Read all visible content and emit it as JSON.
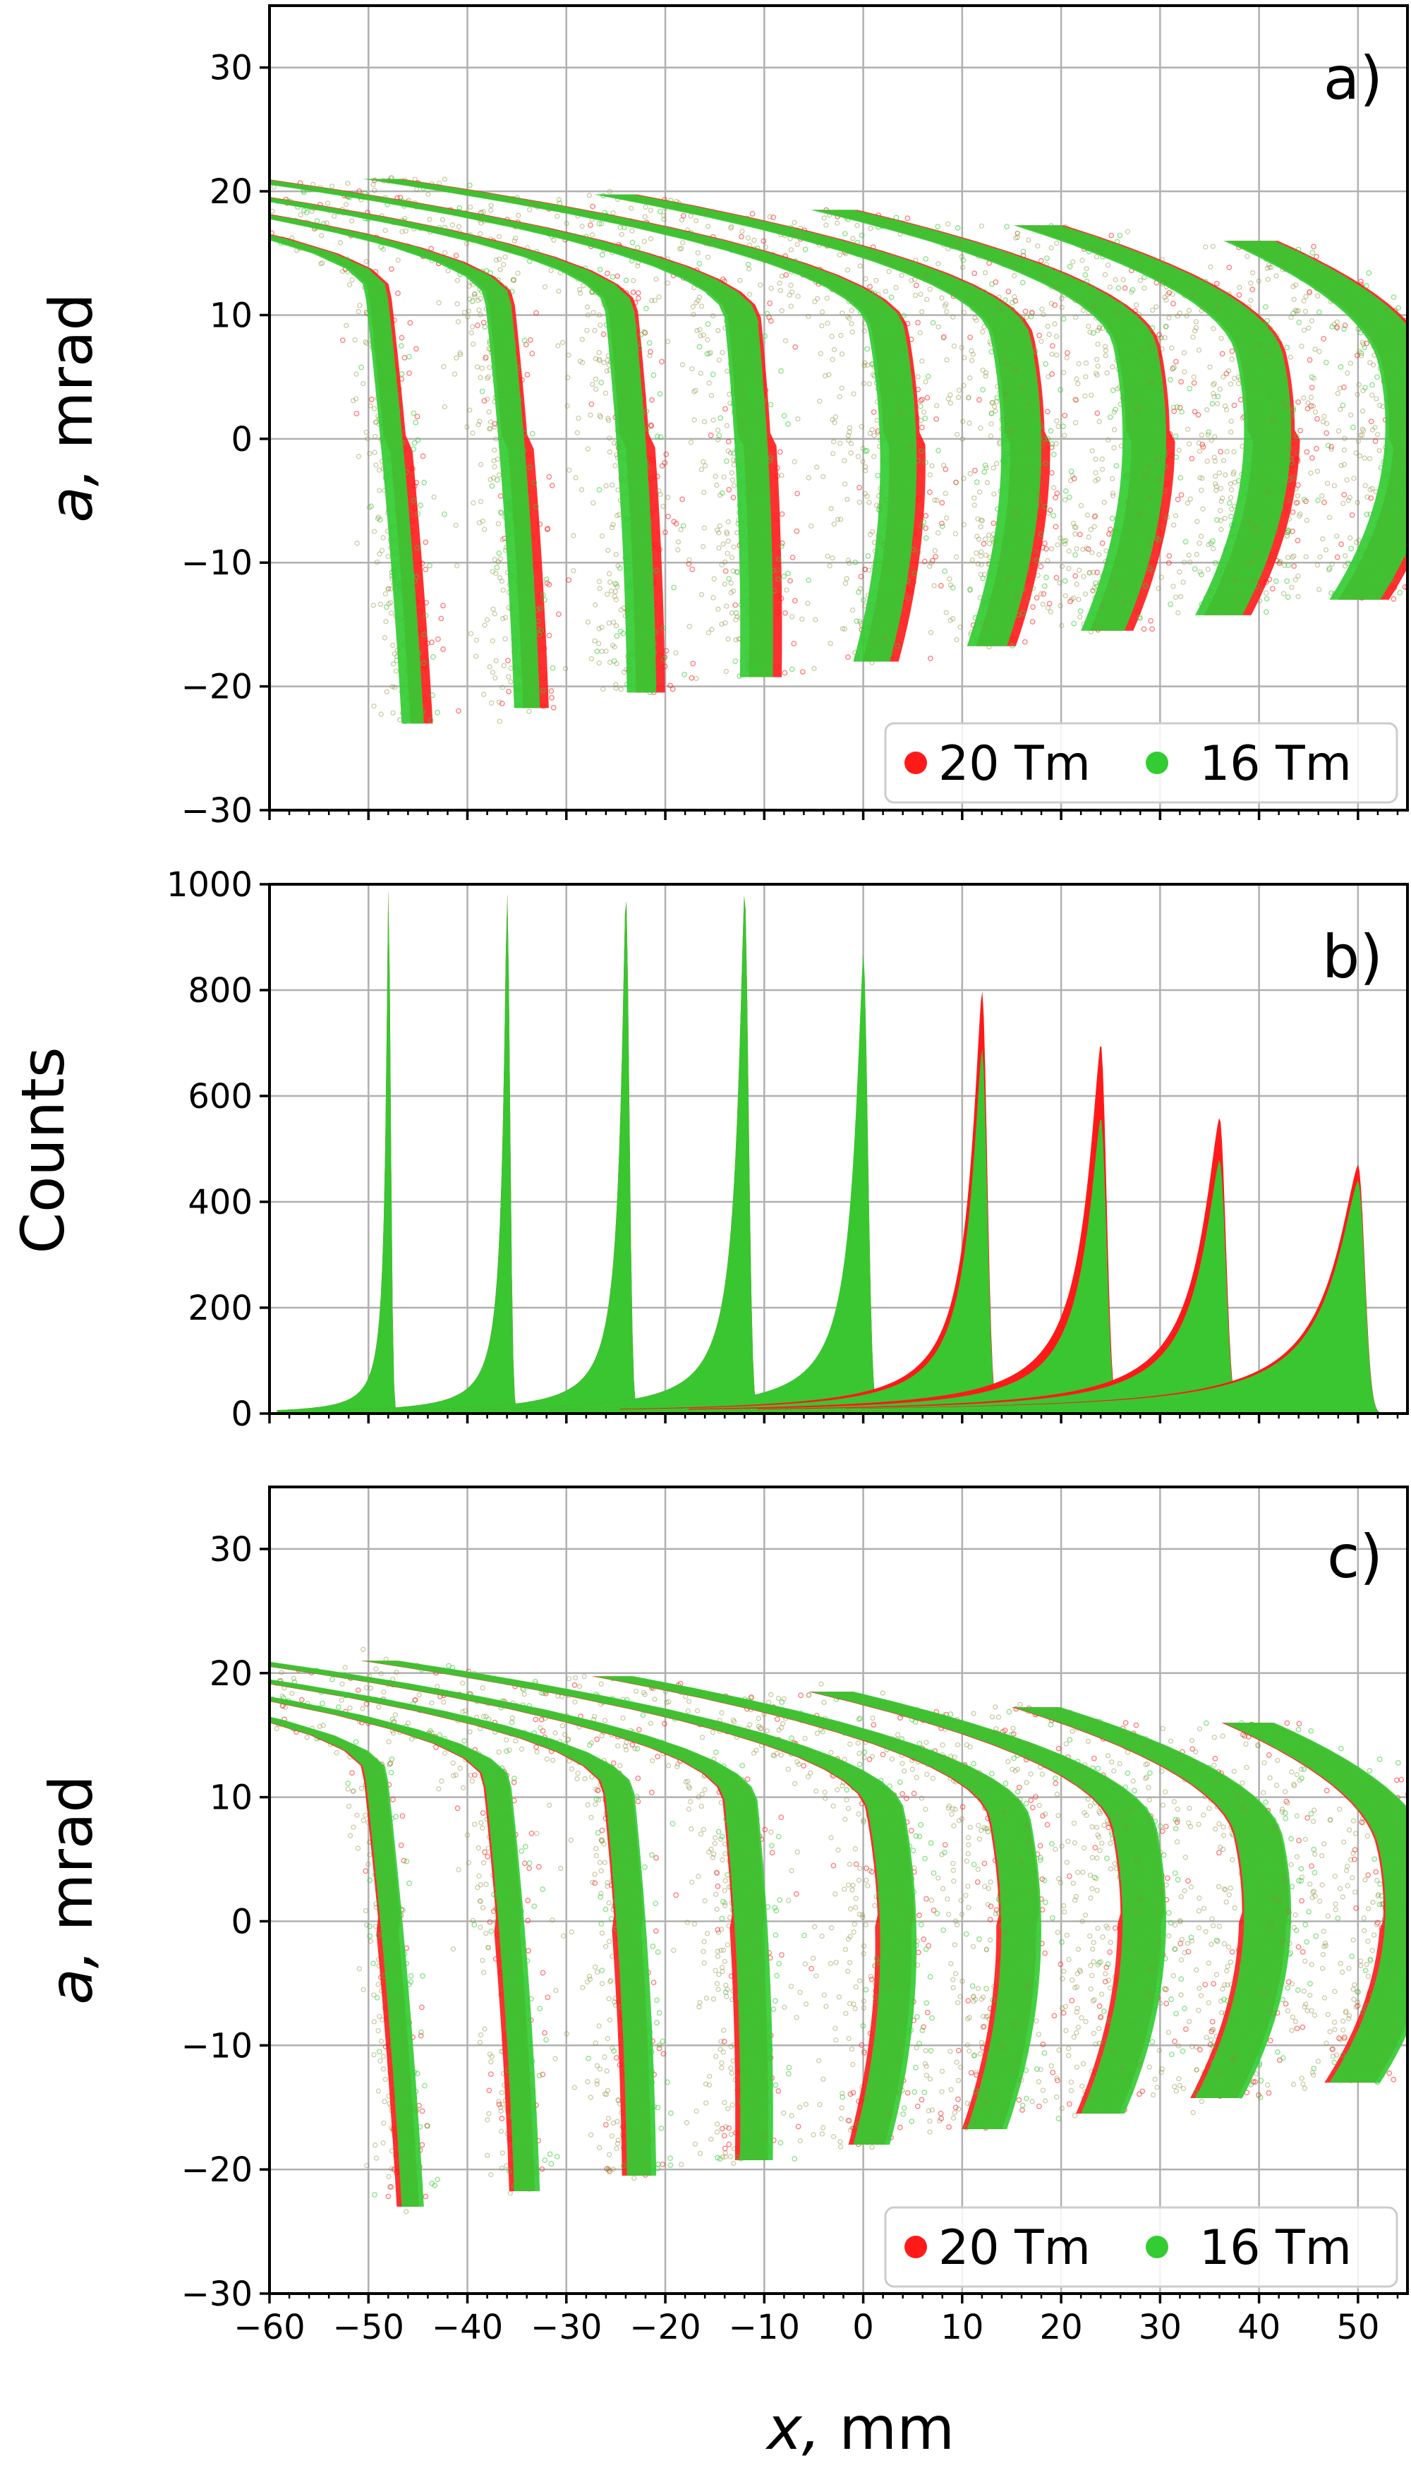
{
  "colors": {
    "red": "#ff1a1a",
    "green": "#33cc33",
    "darkgreen": "#556b2f"
  },
  "chart_data": [
    {
      "id": "a",
      "type": "scatter",
      "panel_label": "a)",
      "ylabel_var": "a,",
      "ylabel_unit": "mrad",
      "xlim": [
        -60,
        55
      ],
      "ylim": [
        -30,
        35
      ],
      "yticks": [
        -30,
        -20,
        -10,
        0,
        10,
        20,
        30
      ],
      "ytick_labels": [
        "−30",
        "−20",
        "−10",
        "0",
        "10",
        "20",
        "30"
      ],
      "legend": {
        "placement": "lower-right",
        "entries": [
          "20 Tm",
          "16 Tm"
        ]
      },
      "series": [
        {
          "name": "20 Tm",
          "color": "#ff1a1a",
          "beam_centers_x": [
            -48,
            -36,
            -24,
            -12,
            0,
            12,
            24,
            36,
            50
          ]
        },
        {
          "name": "16 Tm",
          "color": "#33cc33",
          "beam_centers_x": [
            -48,
            -36,
            -24,
            -12,
            0,
            12,
            24,
            36,
            50
          ]
        }
      ]
    },
    {
      "id": "b",
      "type": "histogram",
      "panel_label": "b)",
      "ylabel": "Counts",
      "xlim": [
        -60,
        55
      ],
      "ylim": [
        0,
        1000
      ],
      "yticks": [
        0,
        200,
        400,
        600,
        800,
        1000
      ],
      "ytick_labels": [
        "0",
        "200",
        "400",
        "600",
        "800",
        "1000"
      ],
      "series": [
        {
          "name": "20 Tm",
          "peak_x": [
            -48,
            -36,
            -24,
            -12,
            0,
            12,
            24,
            36,
            50
          ],
          "peak_counts": [
            990,
            990,
            990,
            990,
            860,
            800,
            700,
            560,
            470
          ]
        },
        {
          "name": "16 Tm",
          "peak_x": [
            -48,
            -36,
            -24,
            -12,
            0,
            12,
            24,
            36,
            50
          ],
          "peak_counts": [
            990,
            990,
            990,
            990,
            870,
            690,
            560,
            480,
            440
          ]
        }
      ]
    },
    {
      "id": "c",
      "type": "scatter",
      "panel_label": "c)",
      "ylabel_var": "a,",
      "ylabel_unit": "mrad",
      "xlabel_var": "x,",
      "xlabel_unit": "mm",
      "xlim": [
        -60,
        55
      ],
      "ylim": [
        -30,
        35
      ],
      "yticks": [
        -30,
        -20,
        -10,
        0,
        10,
        20,
        30
      ],
      "ytick_labels": [
        "−30",
        "−20",
        "−10",
        "0",
        "10",
        "20",
        "30"
      ],
      "xticks": [
        -60,
        -50,
        -40,
        -30,
        -20,
        -10,
        0,
        10,
        20,
        30,
        40,
        50
      ],
      "xtick_labels": [
        "−60",
        "−50",
        "−40",
        "−30",
        "−20",
        "−10",
        "0",
        "10",
        "20",
        "30",
        "40",
        "50"
      ],
      "legend": {
        "placement": "lower-right",
        "entries": [
          "20 Tm",
          "16 Tm"
        ]
      },
      "series": [
        {
          "name": "20 Tm",
          "color": "#ff1a1a",
          "beam_centers_x": [
            -48,
            -36,
            -24,
            -12,
            0,
            12,
            24,
            36,
            50
          ]
        },
        {
          "name": "16 Tm",
          "color": "#33cc33",
          "beam_centers_x": [
            -48,
            -36,
            -24,
            -12,
            0,
            12,
            24,
            36,
            50
          ]
        }
      ]
    }
  ]
}
